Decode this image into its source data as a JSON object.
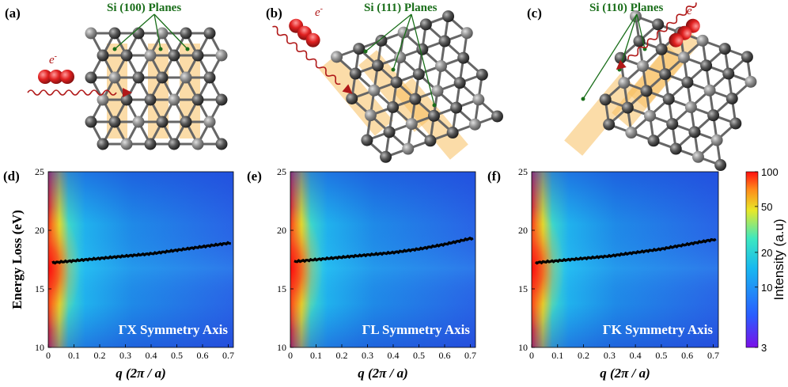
{
  "panels_top": [
    {
      "label": "(a)",
      "planes_label": "Si (100) Planes",
      "electron_label": "e"
    },
    {
      "label": "(b)",
      "planes_label": "Si (111) Planes",
      "electron_label": "e"
    },
    {
      "label": "(c)",
      "planes_label": "Si (110) Planes",
      "electron_label": "e"
    }
  ],
  "colorbar": {
    "title": "Intensity (a.u)",
    "scale": "log",
    "range": [
      3,
      100
    ],
    "ticks": [
      "100",
      "50",
      "20",
      "10",
      "3"
    ],
    "tick_values": [
      100,
      50,
      20,
      10,
      3
    ],
    "colors": [
      "#7a10e8",
      "#2a5cff",
      "#18b8f0",
      "#3de8c0",
      "#e8e828",
      "#ff8a1a",
      "#ff1010"
    ]
  },
  "chart_data": [
    {
      "type": "heatmap",
      "panel_label": "(d)",
      "annotation": "ΓX Symmetry Axis",
      "xlabel": "q (2π / a)",
      "ylabel": "Energy Loss (eV)",
      "xlim": [
        0,
        0.72
      ],
      "ylim": [
        10,
        25
      ],
      "xticks": [
        0,
        0.1,
        0.2,
        0.3,
        0.4,
        0.5,
        0.6,
        0.7
      ],
      "xtick_labels": [
        "0",
        "0.1",
        "0.2",
        "0.3",
        "0.4",
        "0.5",
        "0.6",
        "0.7"
      ],
      "yticks": [
        10,
        15,
        20,
        25
      ],
      "ytick_labels": [
        "10",
        "15",
        "20",
        "25"
      ],
      "peak_dispersion": {
        "x": [
          0.0,
          0.1,
          0.2,
          0.3,
          0.4,
          0.5,
          0.6,
          0.7
        ],
        "y": [
          17.2,
          17.4,
          17.6,
          17.8,
          18.0,
          18.3,
          18.6,
          18.9
        ]
      }
    },
    {
      "type": "heatmap",
      "panel_label": "(e)",
      "annotation": "ΓL Symmetry Axis",
      "xlabel": "q (2π / a)",
      "ylabel": "",
      "xlim": [
        0,
        0.72
      ],
      "ylim": [
        10,
        25
      ],
      "xticks": [
        0,
        0.1,
        0.2,
        0.3,
        0.4,
        0.5,
        0.6,
        0.7
      ],
      "xtick_labels": [
        "0",
        "0.1",
        "0.2",
        "0.3",
        "0.4",
        "0.5",
        "0.6",
        "0.7"
      ],
      "yticks": [
        10,
        15,
        20,
        25
      ],
      "ytick_labels": [
        "10",
        "15",
        "20",
        "25"
      ],
      "peak_dispersion": {
        "x": [
          0.0,
          0.1,
          0.2,
          0.3,
          0.4,
          0.5,
          0.6,
          0.7
        ],
        "y": [
          17.3,
          17.5,
          17.7,
          17.9,
          18.1,
          18.4,
          18.8,
          19.3
        ]
      }
    },
    {
      "type": "heatmap",
      "panel_label": "(f)",
      "annotation": "ΓK Symmetry Axis",
      "xlabel": "q (2π / a)",
      "ylabel": "",
      "xlim": [
        0,
        0.72
      ],
      "ylim": [
        10,
        25
      ],
      "xticks": [
        0,
        0.1,
        0.2,
        0.3,
        0.4,
        0.5,
        0.6,
        0.7
      ],
      "xtick_labels": [
        "0",
        "0.1",
        "0.2",
        "0.3",
        "0.4",
        "0.5",
        "0.6",
        "0.7"
      ],
      "yticks": [
        10,
        15,
        20,
        25
      ],
      "ytick_labels": [
        "10",
        "15",
        "20",
        "25"
      ],
      "peak_dispersion": {
        "x": [
          0.0,
          0.1,
          0.2,
          0.3,
          0.4,
          0.5,
          0.6,
          0.7
        ],
        "y": [
          17.2,
          17.4,
          17.6,
          17.8,
          18.1,
          18.4,
          18.8,
          19.2
        ]
      }
    }
  ]
}
